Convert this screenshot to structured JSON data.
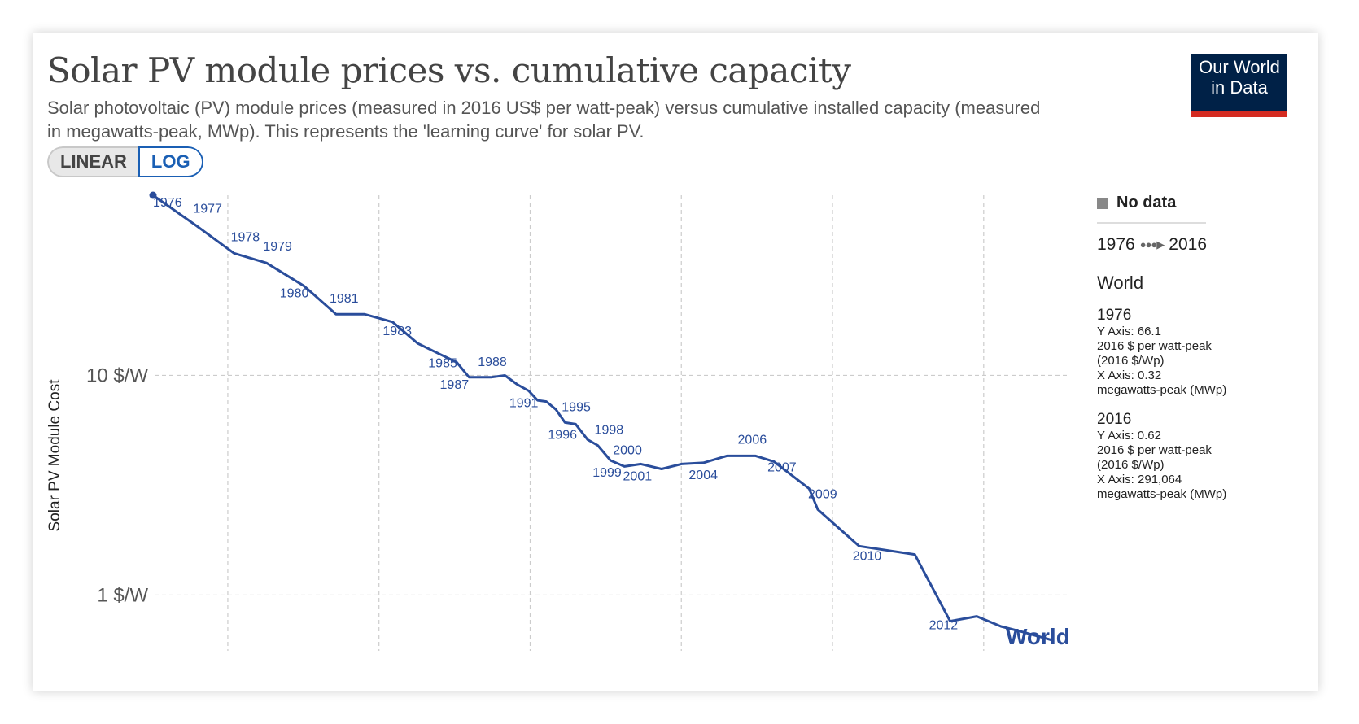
{
  "header": {
    "title": "Solar PV module prices vs. cumulative capacity",
    "subtitle": "Solar photovoltaic (PV) module prices (measured in 2016 US$ per watt-peak) versus cumulative installed capacity (measured in megawatts-peak, MWp). This represents the 'learning curve' for solar PV.",
    "logo_line1": "Our World",
    "logo_line2": "in Data"
  },
  "toggle": {
    "linear": "LINEAR",
    "log": "LOG",
    "selected": "LOG"
  },
  "legend": {
    "no_data": "No data",
    "start_year": "1976",
    "end_year": "2016",
    "timeline_arrow": "●●●▶",
    "entity": "World",
    "points": [
      {
        "year": "1976",
        "y_text": "Y Axis: 66.1",
        "y_unit": "2016 $ per watt-peak (2016 $/Wp)",
        "x_text": "X Axis: 0.32",
        "x_unit": "megawatts-peak (MWp)"
      },
      {
        "year": "2016",
        "y_text": "Y Axis: 0.62",
        "y_unit": "2016 $ per watt-peak (2016 $/Wp)",
        "x_text": "X Axis: 291,064",
        "x_unit": "megawatts-peak (MWp)"
      }
    ]
  },
  "colors": {
    "series": "#2a4d9b",
    "grid": "#cccccc",
    "axis_text": "#555555"
  },
  "chart_data": {
    "type": "line",
    "title": "",
    "ylabel": "Solar PV Module Cost",
    "xlabel": "",
    "y_scale": "log",
    "x_scale": "log",
    "y_ticks": [
      {
        "value": 10,
        "label": "10 $/W"
      },
      {
        "value": 1,
        "label": "1 $/W"
      }
    ],
    "grid": true,
    "x_gridlines": [
      1,
      10,
      100,
      1000,
      10000,
      100000
    ],
    "series": [
      {
        "name": "World",
        "points": [
          {
            "year": 1976,
            "x": 0.32,
            "y": 66.1
          },
          {
            "year": 1977,
            "x": 0.62,
            "y": 48
          },
          {
            "year": 1978,
            "x": 1.1,
            "y": 36
          },
          {
            "year": 1979,
            "x": 1.8,
            "y": 32.5
          },
          {
            "year": 1980,
            "x": 3.2,
            "y": 25.5
          },
          {
            "year": 1981,
            "x": 5.2,
            "y": 19
          },
          {
            "year": 1982,
            "x": 8,
            "y": 19
          },
          {
            "year": 1983,
            "x": 12.3,
            "y": 17.5
          },
          {
            "year": 1984,
            "x": 18,
            "y": 14
          },
          {
            "year": 1985,
            "x": 25.2,
            "y": 12.5
          },
          {
            "year": 1986,
            "x": 32.6,
            "y": 11.5
          },
          {
            "year": 1987,
            "x": 39.5,
            "y": 9.8
          },
          {
            "year": 1988,
            "x": 55,
            "y": 9.8
          },
          {
            "year": 1989,
            "x": 68,
            "y": 10
          },
          {
            "year": 1990,
            "x": 82,
            "y": 9.1
          },
          {
            "year": 1991,
            "x": 98,
            "y": 8.5
          },
          {
            "year": 1992,
            "x": 112,
            "y": 7.7
          },
          {
            "year": 1993,
            "x": 128,
            "y": 7.6
          },
          {
            "year": 1994,
            "x": 148,
            "y": 7
          },
          {
            "year": 1995,
            "x": 170,
            "y": 6.1
          },
          {
            "year": 1996,
            "x": 200,
            "y": 6
          },
          {
            "year": 1997,
            "x": 240,
            "y": 5.1
          },
          {
            "year": 1998,
            "x": 280,
            "y": 4.8
          },
          {
            "year": 1999,
            "x": 340,
            "y": 4.1
          },
          {
            "year": 2000,
            "x": 420,
            "y": 3.85
          },
          {
            "year": 2001,
            "x": 540,
            "y": 3.95
          },
          {
            "year": 2002,
            "x": 740,
            "y": 3.75
          },
          {
            "year": 2003,
            "x": 1000,
            "y": 3.95
          },
          {
            "year": 2004,
            "x": 1400,
            "y": 4
          },
          {
            "year": 2005,
            "x": 2000,
            "y": 4.3
          },
          {
            "year": 2006,
            "x": 3100,
            "y": 4.3
          },
          {
            "year": 2007,
            "x": 4100,
            "y": 4.05
          },
          {
            "year": 2008,
            "x": 7000,
            "y": 3.05
          },
          {
            "year": 2009,
            "x": 8000,
            "y": 2.45
          },
          {
            "year": 2010,
            "x": 15000,
            "y": 1.67
          },
          {
            "year": 2011,
            "x": 35000,
            "y": 1.53
          },
          {
            "year": 2012,
            "x": 60000,
            "y": 0.76
          },
          {
            "year": 2013,
            "x": 90000,
            "y": 0.8
          },
          {
            "year": 2014,
            "x": 130000,
            "y": 0.72
          },
          {
            "year": 2015,
            "x": 180000,
            "y": 0.68
          },
          {
            "year": 2016,
            "x": 291064,
            "y": 0.62
          }
        ],
        "labeled_years": [
          1976,
          1977,
          1978,
          1979,
          1980,
          1981,
          1983,
          1985,
          1987,
          1988,
          1991,
          1995,
          1996,
          1998,
          1999,
          2000,
          2001,
          2004,
          2006,
          2007,
          2009,
          2010,
          2012
        ],
        "end_label": "World"
      }
    ]
  }
}
